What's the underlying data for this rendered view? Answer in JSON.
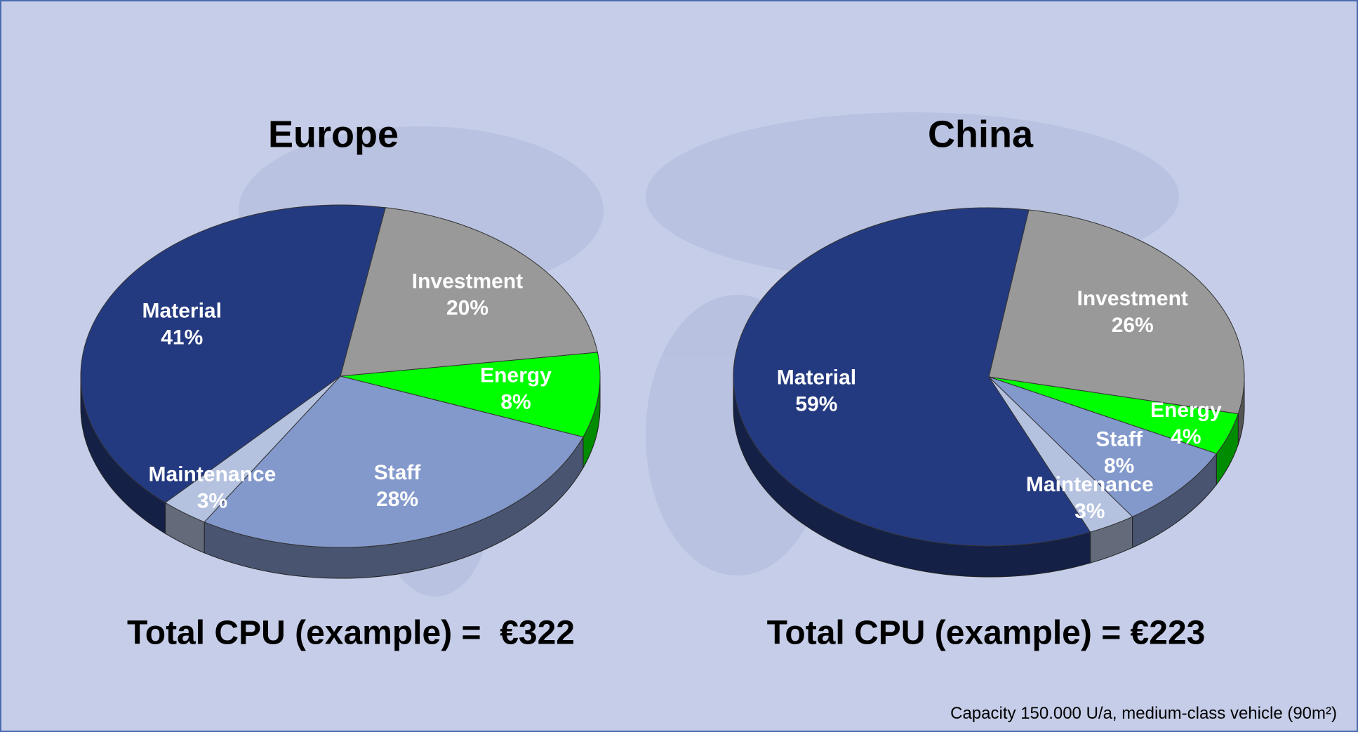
{
  "chart_data": [
    {
      "type": "pie",
      "title": "Europe",
      "categories": [
        "Investment",
        "Energy",
        "Staff",
        "Maintenance",
        "Material"
      ],
      "values": [
        20,
        8,
        28,
        3,
        41
      ],
      "value_labels": [
        "20%",
        "8%",
        "28%",
        "3%",
        "41%"
      ],
      "colors": [
        "#999999",
        "#00ff00",
        "#8399cc",
        "#b4c2e0",
        "#243a80"
      ],
      "annotation": "Total CPU (example) =  €322"
    },
    {
      "type": "pie",
      "title": "China",
      "categories": [
        "Investment",
        "Energy",
        "Staff",
        "Maintenance",
        "Material"
      ],
      "values": [
        26,
        4,
        8,
        3,
        59
      ],
      "value_labels": [
        "26%",
        "4%",
        "8%",
        "3%",
        "59%"
      ],
      "colors": [
        "#999999",
        "#00ff00",
        "#8399cc",
        "#b4c2e0",
        "#243a80"
      ],
      "annotation": "Total CPU (example) = €223"
    }
  ],
  "footnote": "Capacity 150.000 U/a, medium-class vehicle (90m²)"
}
